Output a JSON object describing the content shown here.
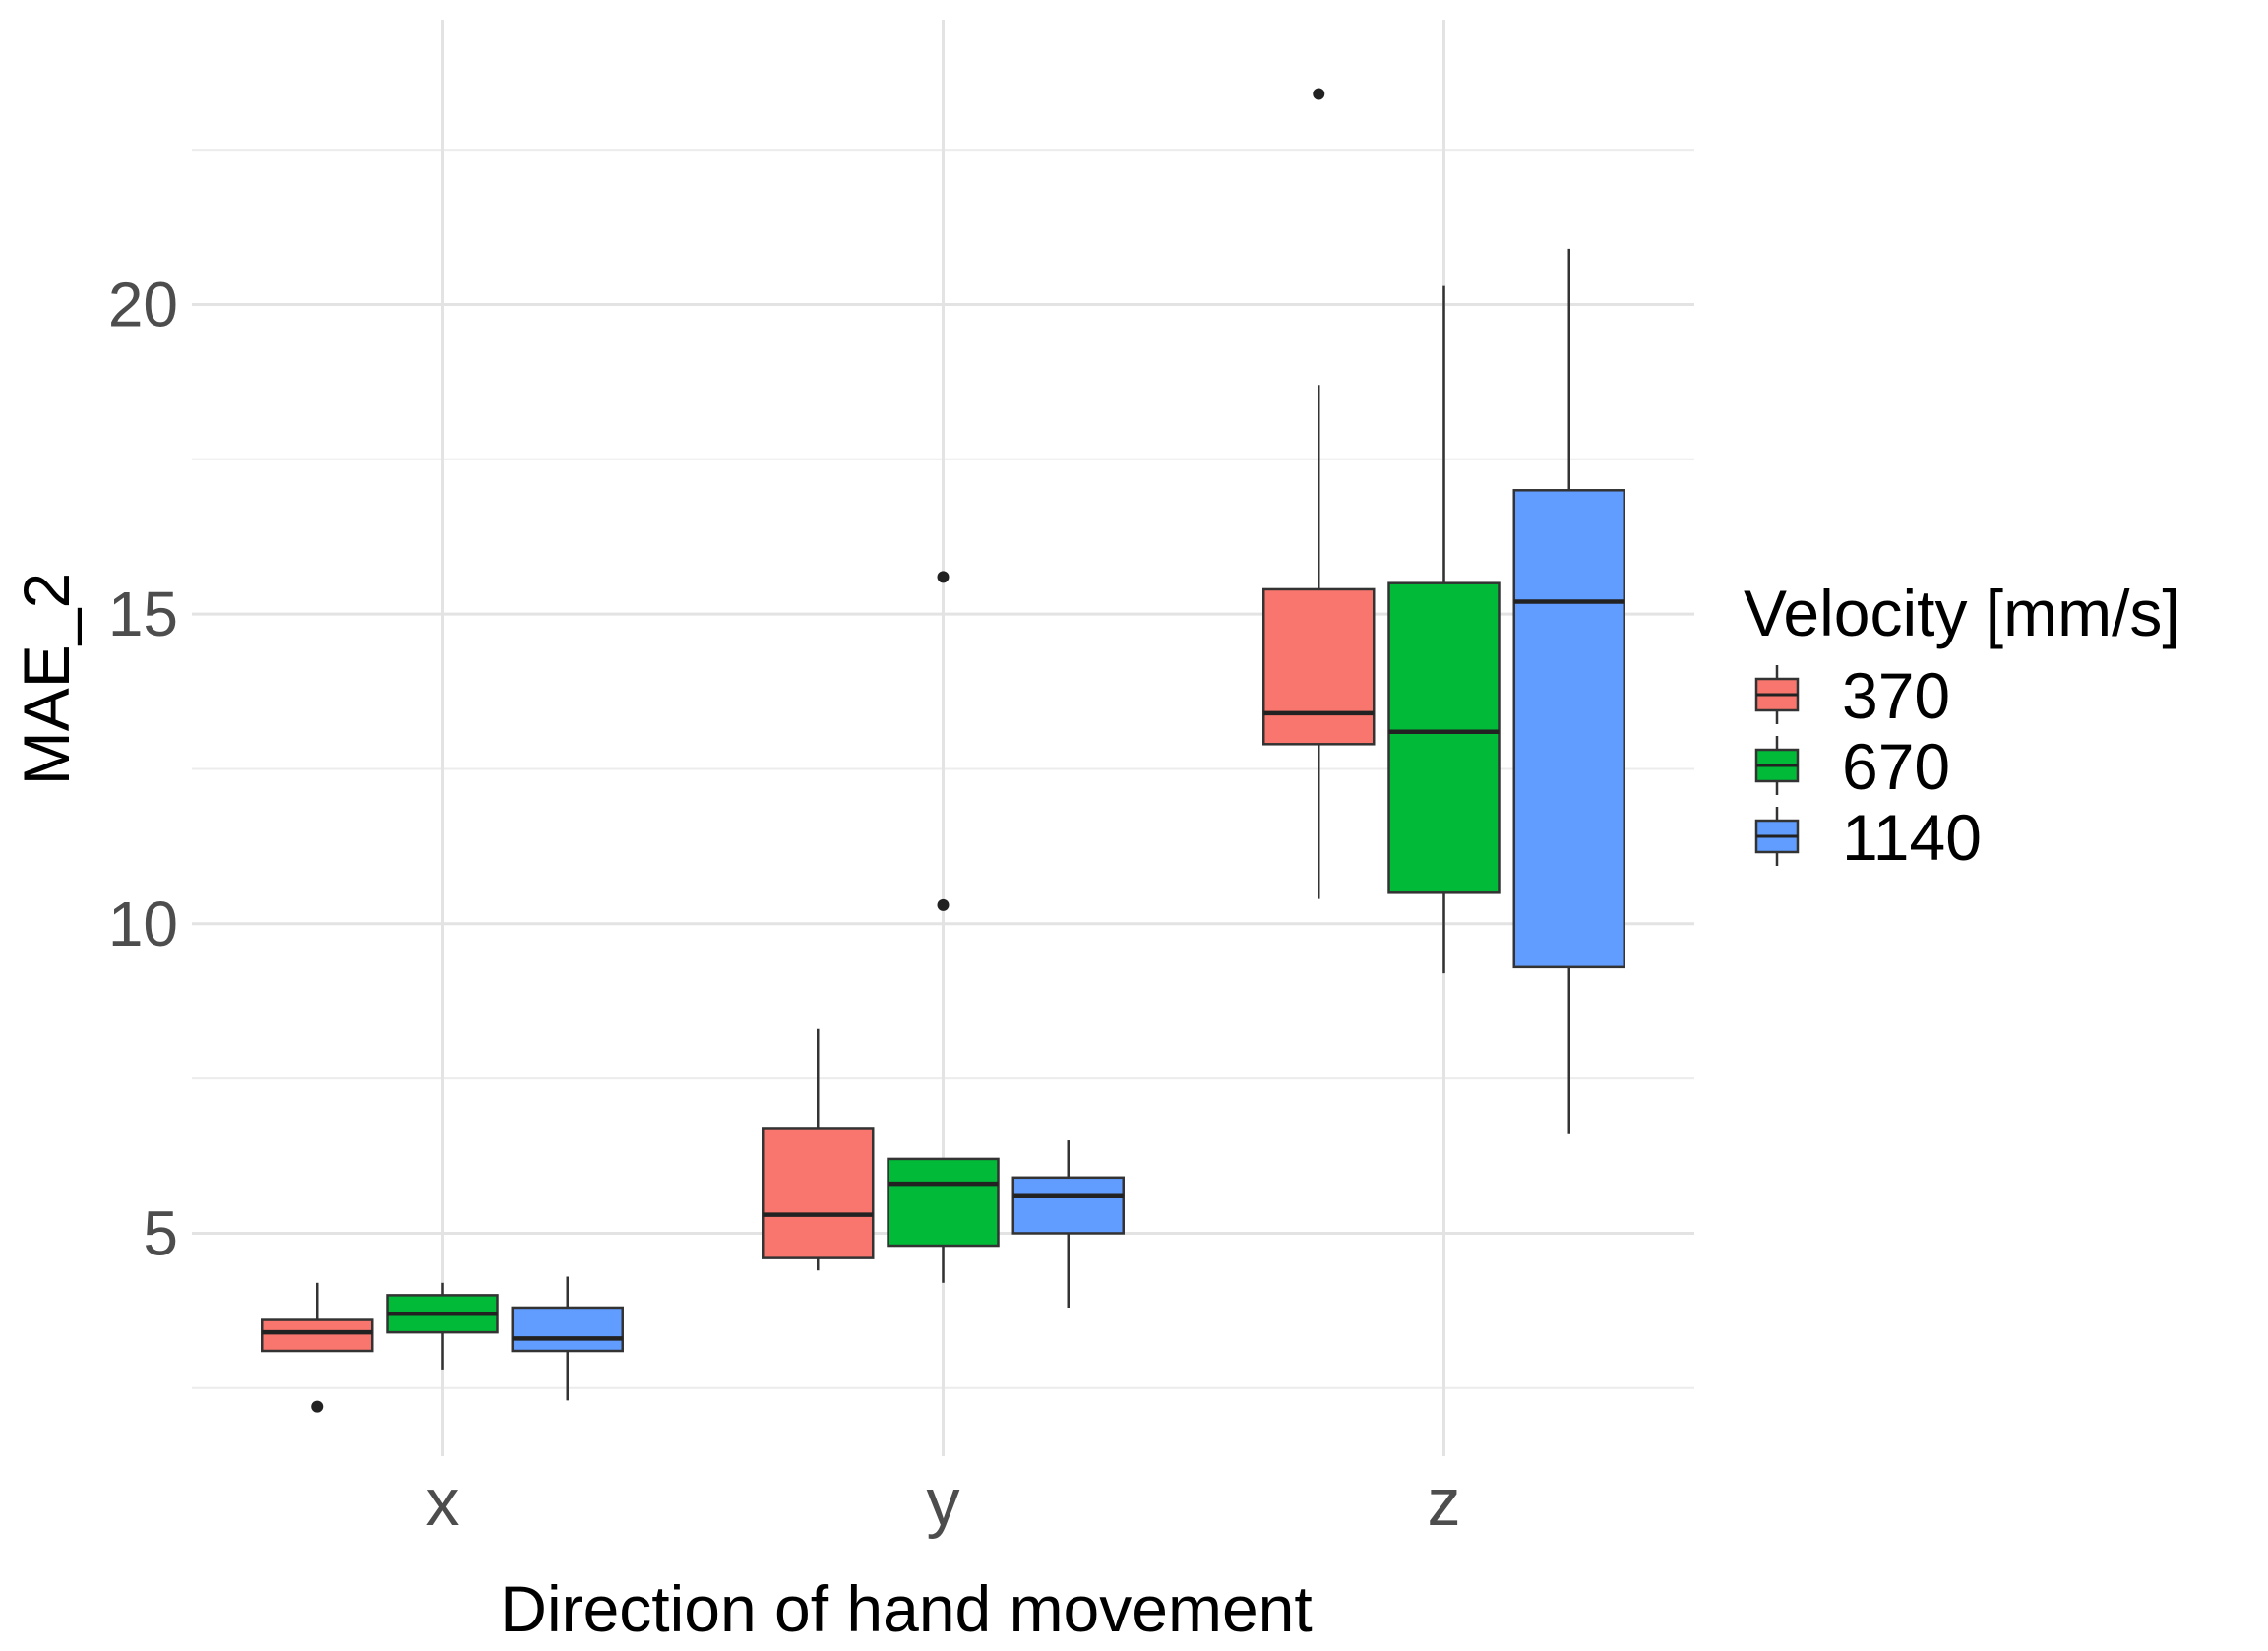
{
  "chart_data": {
    "type": "box",
    "title": "",
    "xlabel": "Direction of hand movement",
    "ylabel": "MAE_2",
    "categories": [
      "x",
      "y",
      "z"
    ],
    "ylim": [
      1.4,
      24.6
    ],
    "yticks": [
      5,
      10,
      15,
      20
    ],
    "grid": true,
    "legend": {
      "title": "Velocity [mm/s]",
      "position": "right"
    },
    "series": [
      {
        "name": "370",
        "color": "#F8766D",
        "boxes": [
          {
            "category": "x",
            "whisker_low": 3.1,
            "q1": 3.1,
            "median": 3.4,
            "q3": 3.6,
            "whisker_high": 4.2,
            "outliers": [
              2.2
            ]
          },
          {
            "category": "y",
            "whisker_low": 4.4,
            "q1": 4.6,
            "median": 5.3,
            "q3": 6.7,
            "whisker_high": 8.3,
            "outliers": []
          },
          {
            "category": "z",
            "whisker_low": 10.4,
            "q1": 12.9,
            "median": 13.4,
            "q3": 15.4,
            "whisker_high": 18.7,
            "outliers": [
              23.4
            ]
          }
        ]
      },
      {
        "name": "670",
        "color": "#00BA38",
        "boxes": [
          {
            "category": "x",
            "whisker_low": 2.8,
            "q1": 3.4,
            "median": 3.7,
            "q3": 4.0,
            "whisker_high": 4.2,
            "outliers": []
          },
          {
            "category": "y",
            "whisker_low": 4.2,
            "q1": 4.8,
            "median": 5.8,
            "q3": 6.2,
            "whisker_high": 6.2,
            "outliers": [
              15.6,
              10.3
            ]
          },
          {
            "category": "z",
            "whisker_low": 9.2,
            "q1": 10.5,
            "median": 13.1,
            "q3": 15.5,
            "whisker_high": 20.3,
            "outliers": []
          }
        ]
      },
      {
        "name": "1140",
        "color": "#619CFF",
        "boxes": [
          {
            "category": "x",
            "whisker_low": 2.3,
            "q1": 3.1,
            "median": 3.3,
            "q3": 3.8,
            "whisker_high": 4.3,
            "outliers": []
          },
          {
            "category": "y",
            "whisker_low": 3.8,
            "q1": 5.0,
            "median": 5.6,
            "q3": 5.9,
            "whisker_high": 6.5,
            "outliers": []
          },
          {
            "category": "z",
            "whisker_low": 6.6,
            "q1": 9.3,
            "median": 15.2,
            "q3": 17.0,
            "whisker_high": 20.9,
            "outliers": []
          }
        ]
      }
    ]
  }
}
